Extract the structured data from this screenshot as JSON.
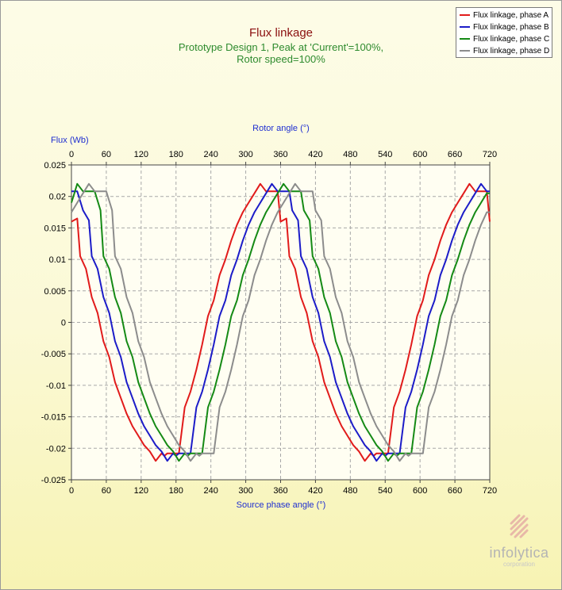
{
  "title": "Flux linkage",
  "subtitle_line1": "Prototype Design 1, Peak at 'Current'=100%,",
  "subtitle_line2": "Rotor speed=100%",
  "logo": {
    "name": "infolytica",
    "sub": "corporation"
  },
  "chart_data": {
    "type": "line",
    "ylabel": "Flux (Wb)",
    "xlabel": "Source phase angle (°)",
    "x2label": "Rotor angle (°)",
    "xlim": [
      0,
      720
    ],
    "ylim": [
      -0.025,
      0.025
    ],
    "xticks": [
      0,
      60,
      120,
      180,
      240,
      300,
      360,
      420,
      480,
      540,
      600,
      660,
      720
    ],
    "yticks": [
      0.025,
      0.02,
      0.015,
      0.01,
      0.005,
      0,
      -0.005,
      -0.01,
      -0.015,
      -0.02,
      -0.025
    ],
    "ytick_labels": [
      "0.025",
      "0.02",
      "0.015",
      "0.01",
      "0.005",
      "0",
      "-0.005",
      "-0.01",
      "-0.015",
      "-0.02",
      "-0.025"
    ],
    "grid": true,
    "legend_position": "top-right",
    "series": [
      {
        "name": "Flux linkage, phase A",
        "color": "#e11b1b",
        "x": [
          0,
          10,
          15,
          25,
          35,
          45,
          55,
          65,
          75,
          85,
          95,
          105,
          115,
          125,
          135,
          145,
          155,
          160,
          165,
          175,
          185,
          195,
          205,
          215,
          225,
          235,
          245,
          255,
          265,
          275,
          285,
          295,
          305,
          315,
          325,
          335,
          345,
          355,
          360,
          370,
          375,
          385,
          395,
          405,
          415,
          425,
          435,
          445,
          455,
          465,
          475,
          485,
          495,
          505,
          515,
          520,
          525,
          535,
          545,
          555,
          565,
          575,
          585,
          595,
          605,
          615,
          625,
          635,
          645,
          655,
          665,
          675,
          685,
          695,
          705,
          715,
          720
        ],
        "y": [
          0.016,
          0.0165,
          0.0105,
          0.0085,
          0.004,
          0.0015,
          -0.003,
          -0.0055,
          -0.0095,
          -0.012,
          -0.0145,
          -0.0165,
          -0.018,
          -0.0195,
          -0.0205,
          -0.022,
          -0.0208,
          -0.0212,
          -0.0208,
          -0.0208,
          -0.0208,
          -0.0135,
          -0.011,
          -0.0075,
          -0.0035,
          0.001,
          0.0035,
          0.0075,
          0.01,
          0.013,
          0.0155,
          0.0175,
          0.019,
          0.0205,
          0.022,
          0.0208,
          0.0208,
          0.0208,
          0.016,
          0.0165,
          0.0105,
          0.0085,
          0.004,
          0.0015,
          -0.003,
          -0.0055,
          -0.0095,
          -0.012,
          -0.0145,
          -0.0165,
          -0.018,
          -0.0195,
          -0.0205,
          -0.022,
          -0.0208,
          -0.0212,
          -0.0208,
          -0.0208,
          -0.0208,
          -0.0135,
          -0.011,
          -0.0075,
          -0.0035,
          0.001,
          0.0035,
          0.0075,
          0.01,
          0.013,
          0.0155,
          0.0175,
          0.019,
          0.0205,
          0.022,
          0.0208,
          0.0208,
          0.0208,
          0.016
        ]
      },
      {
        "name": "Flux linkage, phase B",
        "color": "#1c1cc8",
        "x": [
          0,
          5,
          10,
          20,
          30,
          35,
          45,
          55,
          65,
          75,
          85,
          95,
          105,
          115,
          125,
          135,
          145,
          155,
          165,
          175,
          180,
          185,
          195,
          205,
          215,
          225,
          235,
          245,
          255,
          265,
          275,
          285,
          295,
          305,
          315,
          325,
          335,
          345,
          355,
          365,
          375,
          380,
          390,
          395,
          405,
          415,
          425,
          435,
          445,
          455,
          465,
          475,
          485,
          495,
          505,
          515,
          525,
          535,
          540,
          545,
          555,
          565,
          575,
          585,
          595,
          605,
          615,
          625,
          635,
          645,
          655,
          665,
          675,
          685,
          695,
          705,
          715,
          720
        ],
        "y": [
          0.0208,
          0.0208,
          0.0208,
          0.0178,
          0.0162,
          0.0105,
          0.0085,
          0.004,
          0.0015,
          -0.003,
          -0.0055,
          -0.0095,
          -0.012,
          -0.0145,
          -0.0165,
          -0.018,
          -0.0195,
          -0.0205,
          -0.022,
          -0.0208,
          -0.0212,
          -0.0208,
          -0.0208,
          -0.0208,
          -0.0135,
          -0.011,
          -0.0075,
          -0.0035,
          0.001,
          0.0035,
          0.0075,
          0.01,
          0.013,
          0.0155,
          0.0175,
          0.019,
          0.0205,
          0.022,
          0.0208,
          0.0208,
          0.0208,
          0.0178,
          0.0162,
          0.0105,
          0.0085,
          0.004,
          0.0015,
          -0.003,
          -0.0055,
          -0.0095,
          -0.012,
          -0.0145,
          -0.0165,
          -0.018,
          -0.0195,
          -0.0205,
          -0.022,
          -0.0208,
          -0.0212,
          -0.0208,
          -0.0208,
          -0.0208,
          -0.0135,
          -0.011,
          -0.0075,
          -0.0035,
          0.001,
          0.0035,
          0.0075,
          0.01,
          0.013,
          0.0155,
          0.0175,
          0.019,
          0.0205,
          0.022,
          0.0208,
          0.0208
        ]
      },
      {
        "name": "Flux linkage, phase C",
        "color": "#158a15",
        "x": [
          0,
          5,
          10,
          20,
          30,
          40,
          50,
          55,
          65,
          75,
          85,
          95,
          105,
          115,
          125,
          135,
          145,
          155,
          165,
          175,
          185,
          195,
          200,
          205,
          215,
          225,
          235,
          245,
          255,
          265,
          275,
          285,
          295,
          305,
          315,
          325,
          335,
          345,
          355,
          365,
          375,
          385,
          395,
          400,
          410,
          415,
          425,
          435,
          445,
          455,
          465,
          475,
          485,
          495,
          505,
          515,
          525,
          535,
          545,
          555,
          560,
          565,
          575,
          585,
          595,
          605,
          615,
          625,
          635,
          645,
          655,
          665,
          675,
          685,
          695,
          705,
          715,
          720
        ],
        "y": [
          0.019,
          0.0205,
          0.022,
          0.0208,
          0.0208,
          0.0208,
          0.0178,
          0.0105,
          0.0085,
          0.004,
          0.0015,
          -0.003,
          -0.0055,
          -0.0095,
          -0.012,
          -0.0145,
          -0.0165,
          -0.018,
          -0.0195,
          -0.0205,
          -0.022,
          -0.0208,
          -0.0212,
          -0.0208,
          -0.0208,
          -0.0208,
          -0.0135,
          -0.011,
          -0.0075,
          -0.0035,
          0.001,
          0.0035,
          0.0075,
          0.01,
          0.013,
          0.0155,
          0.0175,
          0.019,
          0.0205,
          0.022,
          0.0208,
          0.0208,
          0.0208,
          0.0178,
          0.0162,
          0.0105,
          0.0085,
          0.004,
          0.0015,
          -0.003,
          -0.0055,
          -0.0095,
          -0.012,
          -0.0145,
          -0.0165,
          -0.018,
          -0.0195,
          -0.0205,
          -0.022,
          -0.0208,
          -0.0212,
          -0.0208,
          -0.0208,
          -0.0208,
          -0.0135,
          -0.011,
          -0.0075,
          -0.0035,
          0.001,
          0.0035,
          0.0075,
          0.01,
          0.013,
          0.0155,
          0.0175,
          0.019,
          0.0205,
          0.0205
        ]
      },
      {
        "name": "Flux linkage, phase D",
        "color": "#8c8c8c",
        "x": [
          0,
          10,
          20,
          30,
          40,
          50,
          60,
          70,
          75,
          85,
          95,
          105,
          115,
          125,
          135,
          145,
          155,
          165,
          175,
          185,
          195,
          205,
          215,
          220,
          225,
          235,
          245,
          255,
          265,
          275,
          285,
          295,
          305,
          315,
          325,
          335,
          345,
          355,
          365,
          375,
          385,
          395,
          405,
          415,
          420,
          430,
          435,
          445,
          455,
          465,
          475,
          485,
          495,
          505,
          515,
          525,
          535,
          545,
          555,
          565,
          575,
          580,
          585,
          595,
          605,
          615,
          625,
          635,
          645,
          655,
          665,
          675,
          685,
          695,
          705,
          715,
          720
        ],
        "y": [
          0.0175,
          0.019,
          0.0205,
          0.022,
          0.0208,
          0.0208,
          0.0208,
          0.0178,
          0.0105,
          0.0085,
          0.004,
          0.0015,
          -0.003,
          -0.0055,
          -0.0095,
          -0.012,
          -0.0145,
          -0.0165,
          -0.018,
          -0.0195,
          -0.0205,
          -0.022,
          -0.0208,
          -0.0212,
          -0.0208,
          -0.0208,
          -0.0208,
          -0.0135,
          -0.011,
          -0.0075,
          -0.0035,
          0.001,
          0.0035,
          0.0075,
          0.01,
          0.013,
          0.0155,
          0.0175,
          0.019,
          0.0205,
          0.022,
          0.0208,
          0.0208,
          0.0208,
          0.0178,
          0.0162,
          0.0105,
          0.0085,
          0.004,
          0.0015,
          -0.003,
          -0.0055,
          -0.0095,
          -0.012,
          -0.0145,
          -0.0165,
          -0.018,
          -0.0195,
          -0.0205,
          -0.022,
          -0.0208,
          -0.0212,
          -0.0208,
          -0.0208,
          -0.0208,
          -0.0135,
          -0.011,
          -0.0075,
          -0.0035,
          0.001,
          0.0035,
          0.0075,
          0.01,
          0.013,
          0.0155,
          0.0175,
          0.0175
        ]
      }
    ]
  }
}
